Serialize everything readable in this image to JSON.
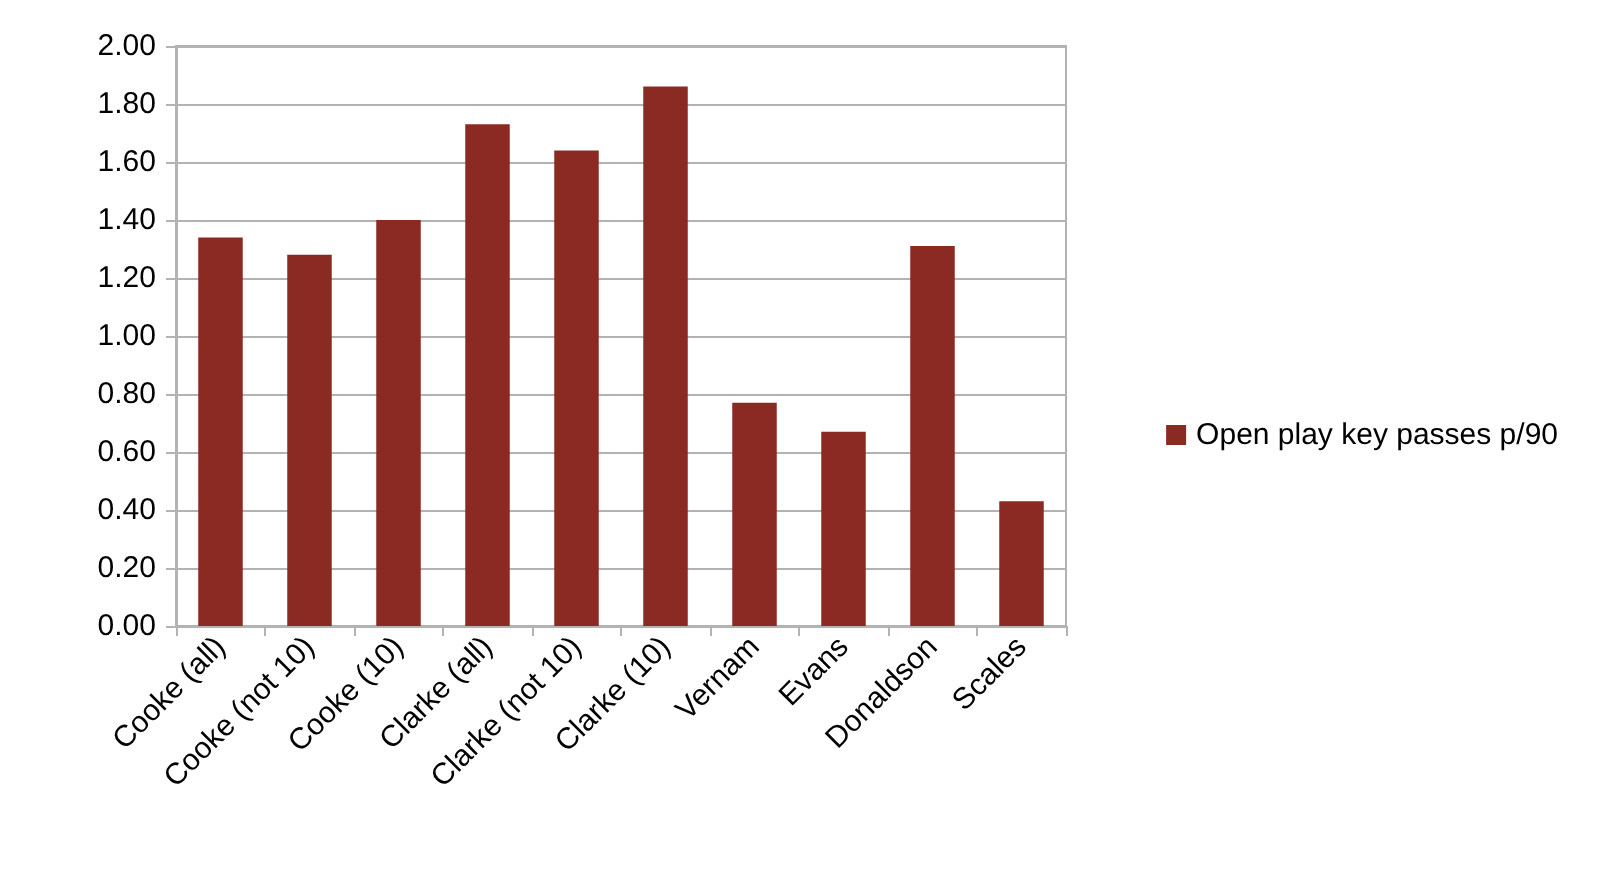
{
  "chart_data": {
    "type": "bar",
    "categories": [
      "Cooke (all)",
      "Cooke (not 10)",
      "Cooke (10)",
      "Clarke (all)",
      "Clarke (not 10)",
      "Clarke (10)",
      "Vernam",
      "Evans",
      "Donaldson",
      "Scales"
    ],
    "series": [
      {
        "name": "Open play key passes p/90",
        "color": "#8b2a22",
        "values": [
          1.34,
          1.28,
          1.4,
          1.73,
          1.64,
          1.86,
          0.77,
          0.67,
          1.31,
          0.43
        ]
      }
    ],
    "ylim": [
      0,
      2
    ],
    "yticks": [
      {
        "value": 0,
        "label": "0.00"
      },
      {
        "value": 0.2,
        "label": "0.20"
      },
      {
        "value": 0.4,
        "label": "0.40"
      },
      {
        "value": 0.6,
        "label": "0.60"
      },
      {
        "value": 0.8,
        "label": "0.80"
      },
      {
        "value": 1,
        "label": "1.00"
      },
      {
        "value": 1.2,
        "label": "1.20"
      },
      {
        "value": 1.4,
        "label": "1.40"
      },
      {
        "value": 1.6,
        "label": "1.60"
      },
      {
        "value": 1.8,
        "label": "1.80"
      },
      {
        "value": 2,
        "label": "2.00"
      }
    ],
    "grid": "y",
    "legend": "right"
  }
}
